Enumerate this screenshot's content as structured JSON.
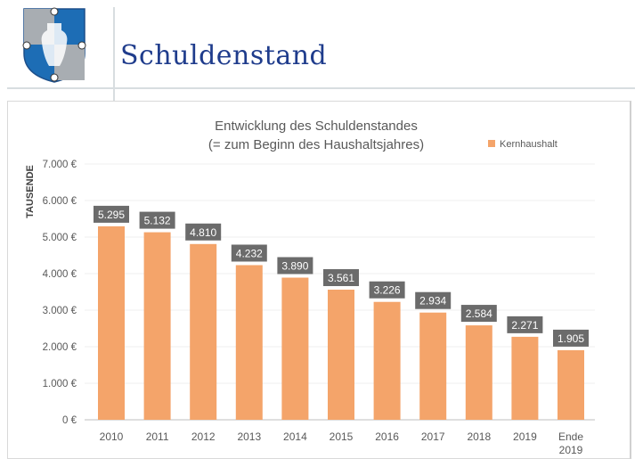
{
  "header": {
    "title": "Schuldenstand"
  },
  "chart_data": {
    "type": "bar",
    "title": "Entwicklung des Schuldenstandes",
    "subtitle": "(= zum Beginn des Haushaltsjahres)",
    "ylabel": "TAUSENDE",
    "xlabel": "",
    "ylim": [
      0,
      7000
    ],
    "yticks": [
      "0 €",
      "1.000 €",
      "2.000 €",
      "3.000 €",
      "4.000 €",
      "5.000 €",
      "6.000 €",
      "7.000 €"
    ],
    "categories": [
      "2010",
      "2011",
      "2012",
      "2013",
      "2014",
      "2015",
      "2016",
      "2017",
      "2018",
      "2019",
      "Ende 2019"
    ],
    "values": [
      5295,
      5132,
      4810,
      4232,
      3890,
      3561,
      3226,
      2934,
      2584,
      2271,
      1905
    ],
    "data_labels": [
      "5.295",
      "5.132",
      "4.810",
      "4.232",
      "3.890",
      "3.561",
      "3.226",
      "2.934",
      "2.584",
      "2.271",
      "1.905"
    ],
    "legend": {
      "entries": [
        "Kernhaushalt"
      ],
      "position": "top-right"
    },
    "grid": true,
    "colors": {
      "bar": "#f4a46a",
      "label_bg": "#6b6b6b"
    }
  }
}
